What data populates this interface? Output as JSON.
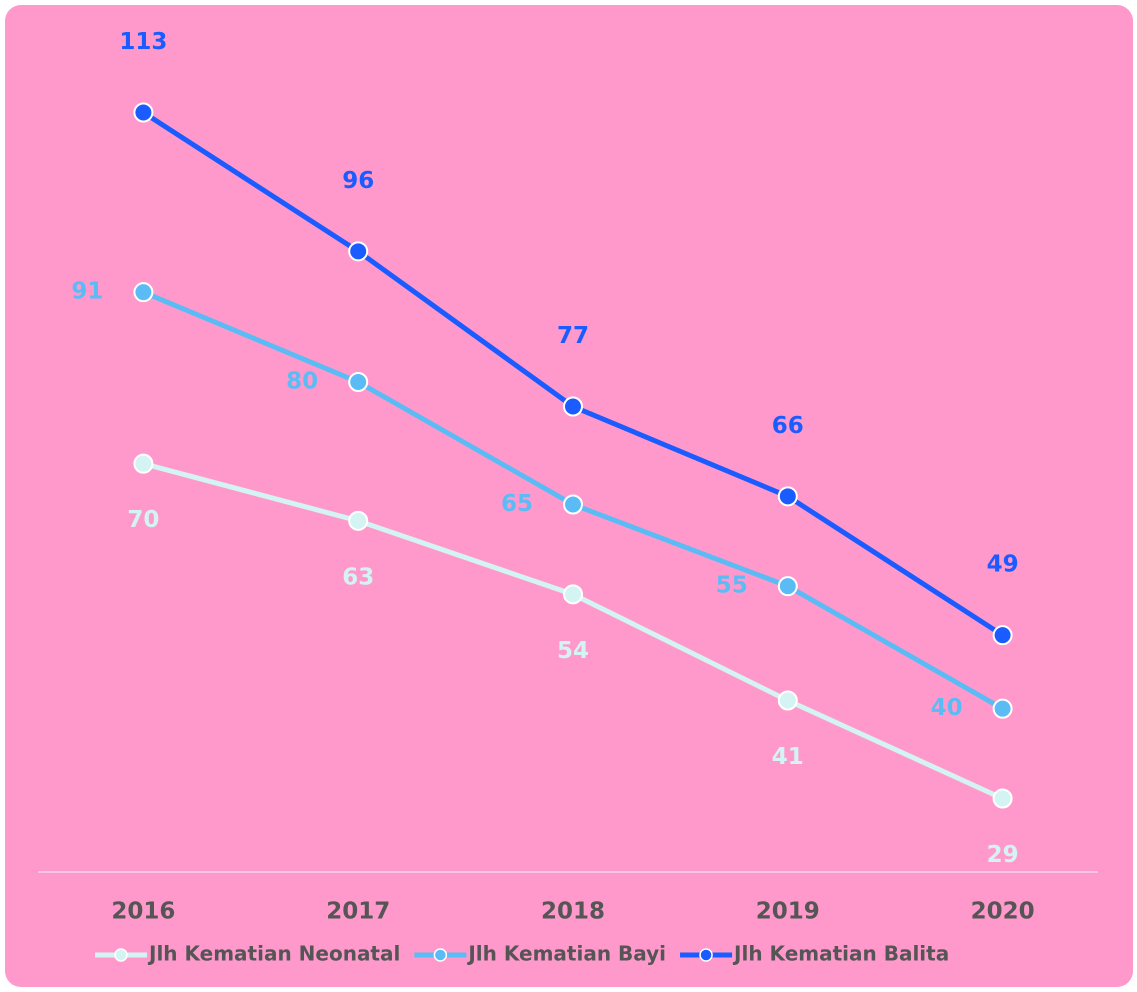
{
  "chart_data": {
    "type": "line",
    "categories": [
      "2016",
      "2017",
      "2018",
      "2019",
      "2020"
    ],
    "series": [
      {
        "name": "Jlh Kematian Neonatal",
        "color": "#d4f3f3",
        "values": [
          70,
          63,
          54,
          41,
          29
        ]
      },
      {
        "name": "Jlh Kematian Bayi",
        "color": "#5bbcf5",
        "values": [
          91,
          80,
          65,
          55,
          40
        ]
      },
      {
        "name": "Jlh Kematian Balita",
        "color": "#1a5cff",
        "values": [
          113,
          96,
          77,
          66,
          49
        ]
      }
    ],
    "ylim": [
      20,
      125
    ],
    "background": "#ff99cc",
    "legend": "bottom"
  }
}
